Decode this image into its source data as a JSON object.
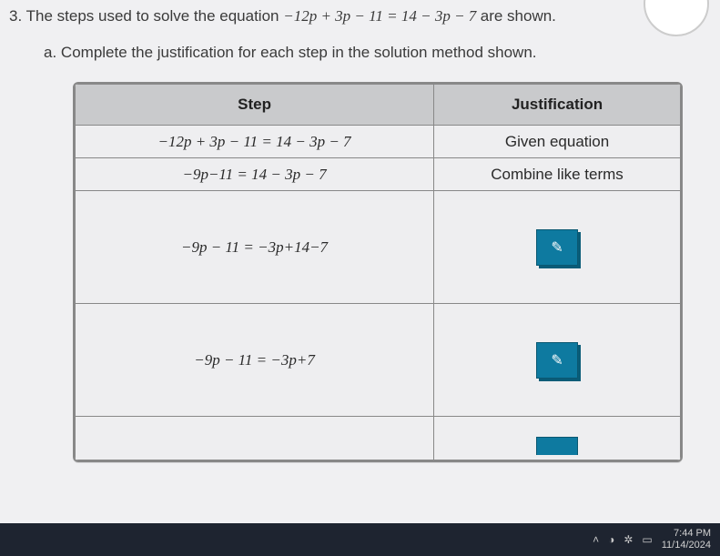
{
  "question": {
    "number": "3.",
    "text_before": "The steps used to solve the equation ",
    "equation": "−12p + 3p − 11 = 14 − 3p − 7",
    "text_after": " are shown."
  },
  "subquestion": {
    "label": "a.",
    "text": "Complete the justification for each step in the solution method shown."
  },
  "table": {
    "headers": {
      "step": "Step",
      "just": "Justification"
    },
    "rows": [
      {
        "step": "−12p + 3p − 11 = 14 − 3p − 7",
        "just_text": "Given equation",
        "height": "norm"
      },
      {
        "step": "−9p−11 = 14 − 3p − 7",
        "just_text": "Combine like terms",
        "height": "norm"
      },
      {
        "step": "−9p − 11 = −3p+14−7",
        "has_button": true,
        "height": "big"
      },
      {
        "step": "−9p − 11 = −3p+7",
        "has_button": true,
        "height": "big"
      }
    ],
    "colors": {
      "header_bg": "#c9cacc",
      "cell_bg": "#eeeef0",
      "border": "#888888",
      "button_bg": "#0e7aa0",
      "button_shadow": "#0a5c78"
    },
    "column_widths_pct": [
      50,
      50
    ]
  },
  "button_glyph": "✎",
  "taskbar": {
    "time": "7:44 PM",
    "date": "11/14/2024",
    "tray_icons": [
      "˄",
      "◑",
      "✲",
      "▭"
    ],
    "app_colors": [
      "#3aa0e0",
      "#2a2a2a",
      "#d04028",
      "#e0a030",
      "#2070c0",
      "#20a048",
      "#6040a0"
    ]
  }
}
